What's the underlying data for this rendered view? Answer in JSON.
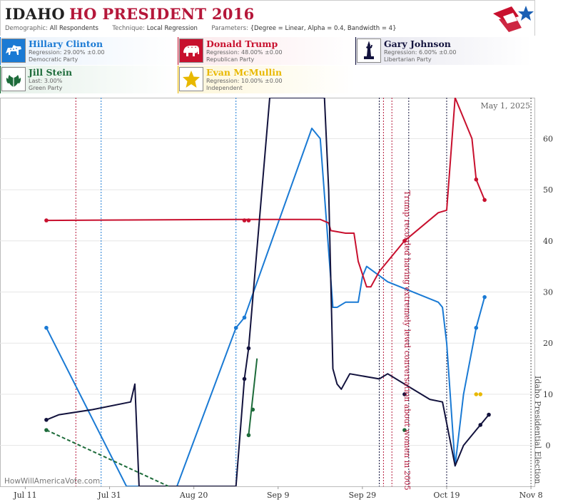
{
  "header": {
    "state": "IDAHO",
    "race": "HO PRESIDENT 2016",
    "demographic_label": "Demographic:",
    "demographic_value": "All Respondents",
    "technique_label": "Technique:",
    "technique_value": "Local Regression",
    "parameters_label": "Parameters:",
    "parameters_value": "{Degree = Linear, Alpha = 0.4, Bandwidth = 4}"
  },
  "candidates": [
    {
      "name": "Hillary Clinton",
      "stat": "Regression: 29.00% ±0.00",
      "party": "Democratic Party",
      "color": "#1a7ad4",
      "icon": "donkey-icon"
    },
    {
      "name": "Donald Trump",
      "stat": "Regression: 48.00% ±0.00",
      "party": "Republican Party",
      "color": "#c8102e",
      "icon": "elephant-icon"
    },
    {
      "name": "Gary Johnson",
      "stat": "Regression: 6.00% ±0.00",
      "party": "Libertarian Party",
      "color": "#12123d",
      "icon": "liberty-icon"
    },
    {
      "name": "Jill Stein",
      "stat": "Last: 3.00%",
      "party": "Green Party",
      "color": "#1d6b3a",
      "icon": "leaf-icon"
    },
    {
      "name": "Evan McMullin",
      "stat": "Regression: 10.00% ±0.00",
      "party": "Independent",
      "color": "#e8b800",
      "icon": "star-icon"
    }
  ],
  "watermark": "HowWillAmericaVote.com",
  "date_stamp": "May 1, 2025",
  "chart_data": {
    "type": "line",
    "x_ticks": [
      "Jul 11",
      "Jul 31",
      "Aug 20",
      "Sep 9",
      "Sep 29",
      "Oct 19",
      "Nov 8"
    ],
    "y_ticks": [
      0,
      10,
      20,
      30,
      40,
      50,
      60
    ],
    "ylim": [
      -8,
      68
    ],
    "xlim_days": [
      -6,
      121
    ],
    "annotations": [
      {
        "text": "Trump recorded having extremely lewd conversation about women in 2005",
        "day": 89,
        "color": "#b5173a"
      },
      {
        "text": "Idaho Presidential Election",
        "day": 120,
        "color": "#555555"
      }
    ],
    "event_lines": [
      {
        "day": 12,
        "color": "#b5173a"
      },
      {
        "day": 18,
        "color": "#1a7ad4"
      },
      {
        "day": 50,
        "color": "#1a7ad4"
      },
      {
        "day": 84,
        "color": "#12123d"
      },
      {
        "day": 91,
        "color": "#12123d"
      },
      {
        "day": 87,
        "color": "#b5173a"
      },
      {
        "day": 85,
        "color": "#b5173a"
      },
      {
        "day": 100,
        "color": "#12123d"
      },
      {
        "day": 120,
        "color": "#555555"
      }
    ],
    "series": [
      {
        "name": "Hillary Clinton",
        "color": "#1a7ad4",
        "dash": "",
        "line": [
          [
            5,
            23
          ],
          [
            24,
            -8
          ],
          [
            36,
            -8
          ],
          [
            50,
            23
          ],
          [
            52,
            25
          ],
          [
            68,
            62
          ],
          [
            70,
            60
          ],
          [
            73,
            27
          ],
          [
            74,
            27
          ],
          [
            76,
            28
          ],
          [
            79,
            28
          ],
          [
            80,
            33
          ],
          [
            81,
            35
          ],
          [
            86,
            32
          ],
          [
            98,
            28
          ],
          [
            99,
            27
          ],
          [
            100,
            20
          ],
          [
            102,
            -4
          ],
          [
            104,
            10
          ],
          [
            107,
            23
          ],
          [
            109,
            29
          ]
        ],
        "points": [
          [
            5,
            23
          ],
          [
            50,
            23
          ],
          [
            52,
            25
          ],
          [
            107,
            23
          ],
          [
            109,
            29
          ]
        ]
      },
      {
        "name": "Donald Trump",
        "color": "#c8102e",
        "dash": "",
        "line": [
          [
            5,
            44
          ],
          [
            50,
            44.2
          ],
          [
            70,
            44.2
          ],
          [
            72,
            43.5
          ],
          [
            72.5,
            42
          ],
          [
            76,
            41.5
          ],
          [
            78,
            41.5
          ],
          [
            79,
            36
          ],
          [
            81,
            31
          ],
          [
            82,
            31
          ],
          [
            84,
            34
          ],
          [
            90,
            40
          ],
          [
            98,
            45.5
          ],
          [
            100,
            46
          ],
          [
            102,
            68
          ],
          [
            106,
            60
          ],
          [
            107,
            52
          ],
          [
            109,
            48
          ]
        ],
        "points": [
          [
            5,
            44
          ],
          [
            52,
            44
          ],
          [
            53,
            44
          ],
          [
            90,
            40
          ],
          [
            107,
            52
          ],
          [
            109,
            48
          ]
        ]
      },
      {
        "name": "Gary Johnson",
        "color": "#12123d",
        "dash": "",
        "line": [
          [
            5,
            5
          ],
          [
            8,
            6
          ],
          [
            16,
            7
          ],
          [
            25,
            8.5
          ],
          [
            26,
            12
          ],
          [
            27,
            -8
          ],
          [
            48,
            -8
          ],
          [
            50,
            -8
          ],
          [
            52,
            13
          ],
          [
            53,
            19
          ],
          [
            58,
            68
          ],
          [
            71,
            68
          ],
          [
            72,
            50
          ],
          [
            73,
            15
          ],
          [
            74,
            12
          ],
          [
            75,
            11
          ],
          [
            77,
            14
          ],
          [
            84,
            13
          ],
          [
            86,
            14
          ],
          [
            90,
            12
          ],
          [
            96,
            9
          ],
          [
            99,
            8.5
          ],
          [
            102,
            -4
          ],
          [
            104,
            0
          ],
          [
            108,
            4
          ],
          [
            110,
            6
          ]
        ],
        "points": [
          [
            5,
            5
          ],
          [
            52,
            13
          ],
          [
            53,
            19
          ],
          [
            90,
            10
          ],
          [
            108,
            4
          ],
          [
            110,
            6
          ]
        ]
      },
      {
        "name": "Jill Stein",
        "color": "#1d6b3a",
        "dash": "",
        "line": [
          [
            53,
            2
          ],
          [
            55,
            17
          ]
        ],
        "points": [
          [
            53,
            2
          ],
          [
            54,
            7
          ],
          [
            90,
            3
          ],
          [
            5,
            3
          ]
        ]
      },
      {
        "name": "Jill Stein trend",
        "color": "#1d6b3a",
        "dash": "5,3",
        "line": [
          [
            5,
            3
          ],
          [
            34,
            -8
          ]
        ],
        "points": []
      },
      {
        "name": "Evan McMullin",
        "color": "#e8b800",
        "dash": "",
        "line": [],
        "points": [
          [
            107,
            10
          ],
          [
            108,
            10
          ]
        ]
      }
    ]
  }
}
